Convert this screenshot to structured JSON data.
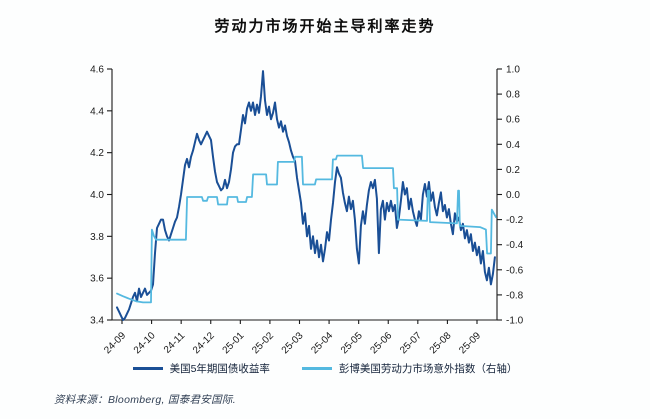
{
  "title": "劳动力市场开始主导利率走势",
  "source_note": "资料来源：Bloomberg, 国泰君安国际.",
  "colors": {
    "treasury_line": "#1a4f96",
    "labor_index_line": "#54b9e0",
    "axis": "#1a1a1a"
  },
  "legend": [
    {
      "label": "美国5年期国债收益率",
      "color": "#1a4f96"
    },
    {
      "label": "彭博美国劳动力市场意外指数（右轴）",
      "color": "#54b9e0"
    }
  ],
  "chart_data": {
    "type": "line",
    "title": "劳动力市场开始主导利率走势",
    "grid": false,
    "legend_position": "bottom",
    "x_axis": {
      "unit": "year-month",
      "tick_labels": [
        "24-09",
        "24-10",
        "24-11",
        "24-12",
        "25-01",
        "25-02",
        "25-03",
        "25-04",
        "25-05",
        "25-06",
        "25-07",
        "25-08",
        "25-09"
      ]
    },
    "left_axis": {
      "min": 3.4,
      "max": 4.6,
      "tick_step": 0.2,
      "tick_labels": [
        "3.4",
        "3.6",
        "3.8",
        "4.0",
        "4.2",
        "4.4",
        "4.6"
      ]
    },
    "right_axis": {
      "min": -1.0,
      "max": 1.0,
      "tick_step": 0.2,
      "tick_labels": [
        "1.0",
        "0.8",
        "0.6",
        "0.4",
        "0.2",
        "0.0",
        "-0.2",
        "-0.4",
        "-0.6",
        "-0.8",
        "-1.0"
      ]
    },
    "series": [
      {
        "name": "美国5年期国债收益率",
        "axis": "left",
        "color": "#1a4f96",
        "width": 2,
        "x_start_month": -0.17,
        "x_step_month": 0.0676,
        "values": [
          3.46,
          3.44,
          3.42,
          3.4,
          3.41,
          3.43,
          3.45,
          3.48,
          3.51,
          3.53,
          3.49,
          3.55,
          3.51,
          3.53,
          3.55,
          3.52,
          3.53,
          3.54,
          3.57,
          3.72,
          3.84,
          3.86,
          3.88,
          3.88,
          3.83,
          3.8,
          3.78,
          3.81,
          3.84,
          3.87,
          3.89,
          3.94,
          4.0,
          4.07,
          4.14,
          4.17,
          4.13,
          4.18,
          4.21,
          4.25,
          4.29,
          4.26,
          4.24,
          4.26,
          4.28,
          4.3,
          4.28,
          4.26,
          4.18,
          4.11,
          4.06,
          4.04,
          4.02,
          4.03,
          4.07,
          4.03,
          4.06,
          4.12,
          4.2,
          4.23,
          4.24,
          4.24,
          4.31,
          4.38,
          4.34,
          4.41,
          4.44,
          4.4,
          4.44,
          4.38,
          4.43,
          4.39,
          4.47,
          4.59,
          4.45,
          4.38,
          4.42,
          4.36,
          4.39,
          4.44,
          4.36,
          4.32,
          4.35,
          4.3,
          4.33,
          4.28,
          4.25,
          4.21,
          4.18,
          4.16,
          4.08,
          4.02,
          3.96,
          3.86,
          3.91,
          3.8,
          3.85,
          3.74,
          3.8,
          3.72,
          3.78,
          3.7,
          3.76,
          3.68,
          3.74,
          3.82,
          3.78,
          3.88,
          3.96,
          4.06,
          4.13,
          4.1,
          4.08,
          4.01,
          3.96,
          3.92,
          3.99,
          3.93,
          3.97,
          3.88,
          3.74,
          3.67,
          3.85,
          3.92,
          3.86,
          3.95,
          4.02,
          4.06,
          4.03,
          4.07,
          3.98,
          3.72,
          3.93,
          3.97,
          3.88,
          3.96,
          3.92,
          3.97,
          3.92,
          3.95,
          3.84,
          3.89,
          3.97,
          4.06,
          4.0,
          4.03,
          3.93,
          3.98,
          3.92,
          3.88,
          3.85,
          3.92,
          3.88,
          4.0,
          4.05,
          3.99,
          4.06,
          3.97,
          4.01,
          3.94,
          3.9,
          3.96,
          4.01,
          3.92,
          3.95,
          3.89,
          3.93,
          3.86,
          3.81,
          3.91,
          3.87,
          3.89,
          3.83,
          3.86,
          3.79,
          3.83,
          3.77,
          3.81,
          3.73,
          3.77,
          3.71,
          3.75,
          3.67,
          3.73,
          3.63,
          3.59,
          3.65,
          3.57,
          3.62,
          3.7
        ]
      },
      {
        "name": "彭博美国劳动力市场意外指数（右轴）",
        "axis": "right",
        "color": "#54b9e0",
        "width": 1.8,
        "points": [
          [
            -0.17,
            -0.79
          ],
          [
            0.03,
            -0.81
          ],
          [
            0.24,
            -0.83
          ],
          [
            0.47,
            -0.85
          ],
          [
            0.71,
            -0.86
          ],
          [
            0.98,
            -0.86
          ],
          [
            1.01,
            -0.28
          ],
          [
            1.08,
            -0.33
          ],
          [
            1.15,
            -0.36
          ],
          [
            2.16,
            -0.36
          ],
          [
            2.2,
            -0.02
          ],
          [
            2.7,
            -0.02
          ],
          [
            2.74,
            -0.05
          ],
          [
            2.87,
            -0.05
          ],
          [
            2.91,
            -0.02
          ],
          [
            3.21,
            -0.02
          ],
          [
            3.25,
            -0.08
          ],
          [
            3.55,
            -0.08
          ],
          [
            3.58,
            -0.02
          ],
          [
            3.89,
            -0.02
          ],
          [
            3.92,
            -0.06
          ],
          [
            4.19,
            -0.06
          ],
          [
            4.23,
            -0.02
          ],
          [
            4.39,
            -0.02
          ],
          [
            4.43,
            0.16
          ],
          [
            4.87,
            0.16
          ],
          [
            4.9,
            0.08
          ],
          [
            5.24,
            0.08
          ],
          [
            5.27,
            0.26
          ],
          [
            5.81,
            0.26
          ],
          [
            5.85,
            0.3
          ],
          [
            6.08,
            0.3
          ],
          [
            6.12,
            0.08
          ],
          [
            6.52,
            0.08
          ],
          [
            6.56,
            0.12
          ],
          [
            7.1,
            0.12
          ],
          [
            7.13,
            0.28
          ],
          [
            7.23,
            0.28
          ],
          [
            7.27,
            0.31
          ],
          [
            8.11,
            0.31
          ],
          [
            8.15,
            0.21
          ],
          [
            9.16,
            0.21
          ],
          [
            9.19,
            0.05
          ],
          [
            9.3,
            0.05
          ],
          [
            9.33,
            -0.2
          ],
          [
            10.31,
            -0.21
          ],
          [
            10.34,
            0.03
          ],
          [
            10.38,
            0.03
          ],
          [
            10.41,
            -0.22
          ],
          [
            11.32,
            -0.23
          ],
          [
            11.36,
            0.03
          ],
          [
            11.39,
            0.03
          ],
          [
            11.42,
            -0.25
          ],
          [
            12.1,
            -0.26
          ],
          [
            12.3,
            -0.28
          ],
          [
            12.34,
            -0.47
          ],
          [
            12.47,
            -0.47
          ],
          [
            12.5,
            -0.12
          ],
          [
            12.64,
            -0.18
          ]
        ]
      }
    ]
  }
}
